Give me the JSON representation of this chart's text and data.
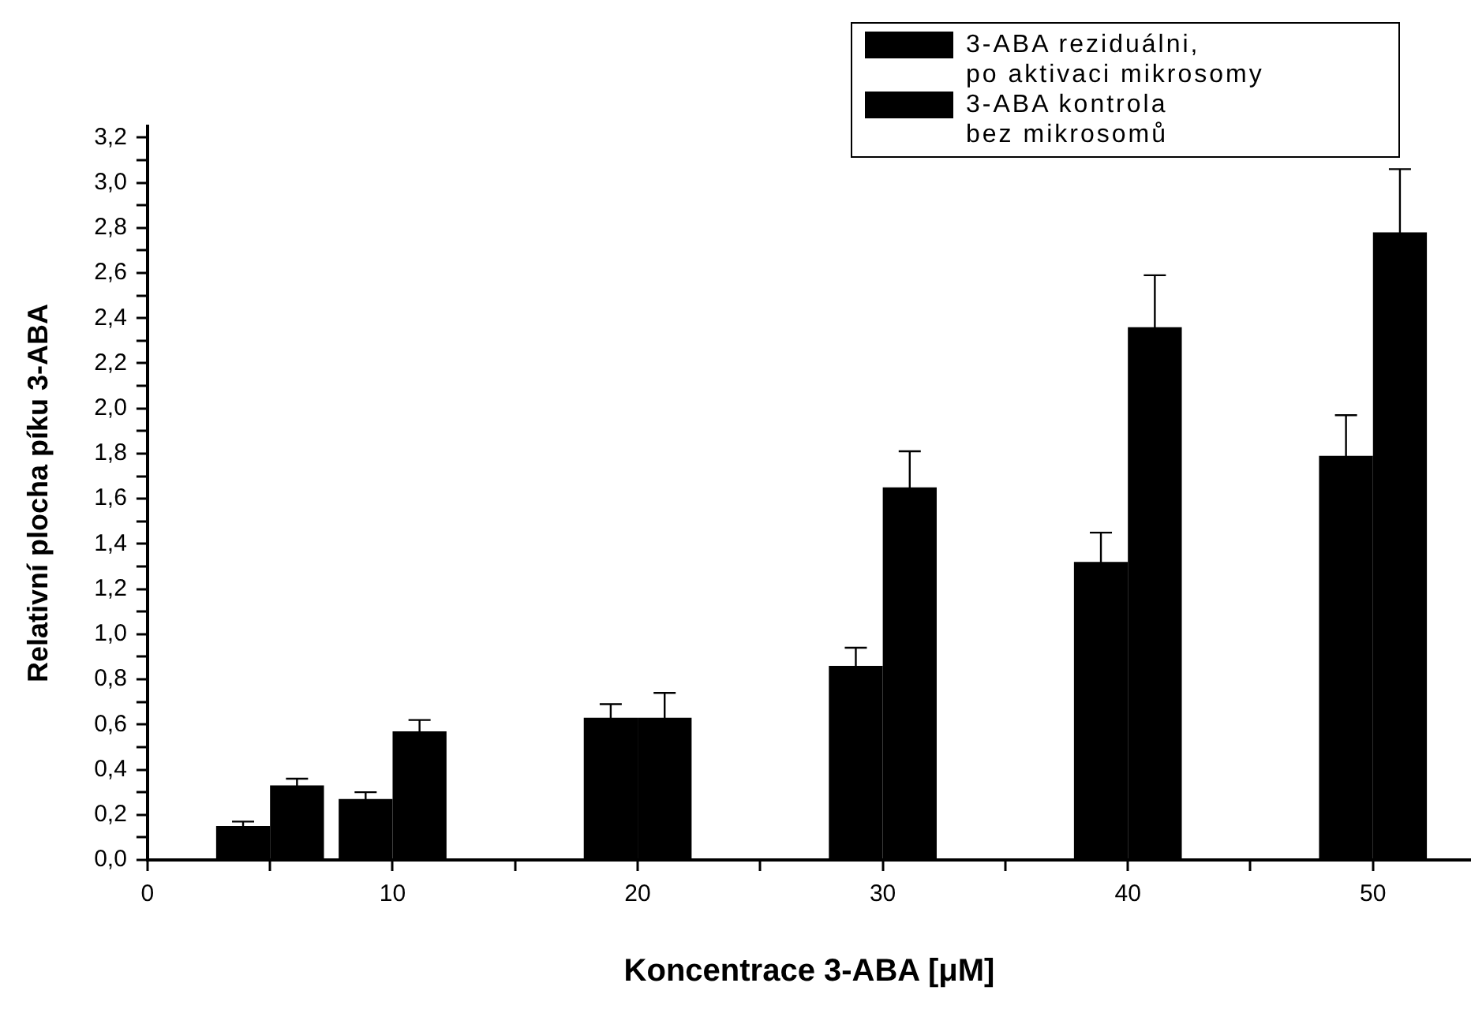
{
  "chart_data": {
    "type": "bar",
    "xlabel": "Koncentrace 3-ABA [μM]",
    "ylabel": "Relativní plocha píku 3-ABA",
    "x": [
      5,
      10,
      20,
      30,
      40,
      50
    ],
    "series": [
      {
        "name": "3-ABA reziduálni,\n po aktivaci mikrosomy",
        "color": "#000000",
        "values": [
          0.15,
          0.27,
          0.63,
          0.86,
          1.32,
          1.79
        ],
        "errors": [
          0.02,
          0.03,
          0.06,
          0.08,
          0.13,
          0.18
        ]
      },
      {
        "name": "3-ABA kontrola\nbez mikrosomů",
        "color": "#000000",
        "values": [
          0.33,
          0.57,
          0.63,
          1.65,
          2.36,
          2.78
        ],
        "errors": [
          0.03,
          0.05,
          0.11,
          0.16,
          0.23,
          0.28
        ]
      }
    ],
    "xlim": [
      0,
      54
    ],
    "xticks": [
      0,
      {
        "value": 5,
        "label": null
      },
      10,
      {
        "value": 15,
        "label": null
      },
      20,
      {
        "value": 25,
        "label": null
      },
      30,
      {
        "value": 35,
        "label": null
      },
      40,
      {
        "value": 45,
        "label": null
      },
      50
    ],
    "ylim": [
      0,
      3.25
    ],
    "yticks": [
      {
        "value": 0,
        "label": "0,0"
      },
      {
        "value": 0.1,
        "label": null
      },
      {
        "value": 0.2,
        "label": "0,2"
      },
      {
        "value": 0.3,
        "label": null
      },
      {
        "value": 0.4,
        "label": "0,4"
      },
      {
        "value": 0.5,
        "label": null
      },
      {
        "value": 0.6,
        "label": "0,6"
      },
      {
        "value": 0.7,
        "label": null
      },
      {
        "value": 0.8,
        "label": "0,8"
      },
      {
        "value": 0.9,
        "label": null
      },
      {
        "value": 1.0,
        "label": "1,0"
      },
      {
        "value": 1.1,
        "label": null
      },
      {
        "value": 1.2,
        "label": "1,2"
      },
      {
        "value": 1.3,
        "label": null
      },
      {
        "value": 1.4,
        "label": "1,4"
      },
      {
        "value": 1.5,
        "label": null
      },
      {
        "value": 1.6,
        "label": "1,6"
      },
      {
        "value": 1.7,
        "label": null
      },
      {
        "value": 1.8,
        "label": "1,8"
      },
      {
        "value": 1.9,
        "label": null
      },
      {
        "value": 2.0,
        "label": "2,0"
      },
      {
        "value": 2.1,
        "label": null
      },
      {
        "value": 2.2,
        "label": "2,2"
      },
      {
        "value": 2.3,
        "label": null
      },
      {
        "value": 2.4,
        "label": "2,4"
      },
      {
        "value": 2.5,
        "label": null
      },
      {
        "value": 2.6,
        "label": "2,6"
      },
      {
        "value": 2.7,
        "label": null
      },
      {
        "value": 2.8,
        "label": "2,8"
      },
      {
        "value": 2.9,
        "label": null
      },
      {
        "value": 3.0,
        "label": "3,0"
      },
      {
        "value": 3.1,
        "label": null
      },
      {
        "value": 3.2,
        "label": "3,2"
      }
    ],
    "grid": false,
    "legend": "top right"
  }
}
